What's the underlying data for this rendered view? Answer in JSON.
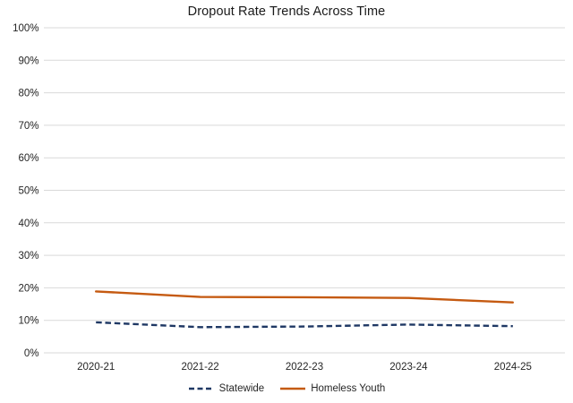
{
  "chart": {
    "title": "Dropout Rate Trends Across Time"
  },
  "chart_data": {
    "type": "line",
    "title": "Dropout Rate Trends Across Time",
    "categories": [
      "2020-21",
      "2021-22",
      "2022-23",
      "2023-24",
      "2024-25"
    ],
    "series": [
      {
        "name": "Statewide",
        "values": [
          9.4,
          7.9,
          8.1,
          8.7,
          8.2
        ],
        "color": "#1F3864",
        "line_style": "dashed"
      },
      {
        "name": "Homeless Youth",
        "values": [
          18.9,
          17.2,
          17.1,
          16.9,
          15.5
        ],
        "color": "#C55A11",
        "line_style": "solid"
      }
    ],
    "xlabel": "",
    "ylabel": "",
    "ylim": [
      0,
      100
    ],
    "ytick_step": 10,
    "ytick_labels": [
      "0%",
      "10%",
      "20%",
      "30%",
      "40%",
      "50%",
      "60%",
      "70%",
      "80%",
      "90%",
      "100%"
    ],
    "grid": true,
    "grid_color": "#D9D9D9",
    "axis_text_color": "#262626",
    "legend_position": "bottom"
  }
}
